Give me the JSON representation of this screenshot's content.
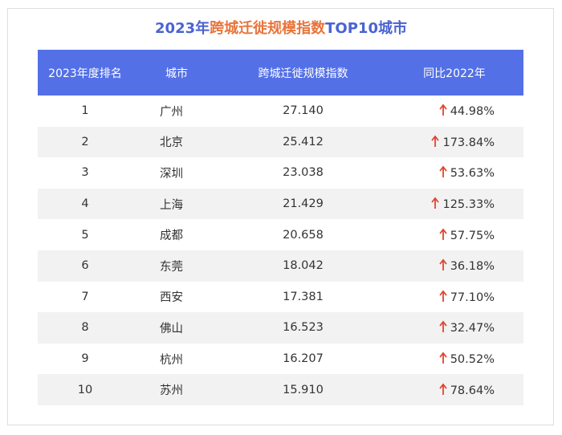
{
  "title": {
    "part1": "2023年",
    "part2": "跨城迁徙规模指数",
    "part3": "TOP10城市"
  },
  "headers": [
    "2023年度排名",
    "城市",
    "跨城迁徙规模指数",
    "同比2022年"
  ],
  "rows": [
    {
      "rank": "1",
      "city": "广州",
      "index": "27.140",
      "change": "44.98%"
    },
    {
      "rank": "2",
      "city": "北京",
      "index": "25.412",
      "change": "173.84%"
    },
    {
      "rank": "3",
      "city": "深圳",
      "index": "23.038",
      "change": "53.63%"
    },
    {
      "rank": "4",
      "city": "上海",
      "index": "21.429",
      "change": "125.33%"
    },
    {
      "rank": "5",
      "city": "成都",
      "index": "20.658",
      "change": "57.75%"
    },
    {
      "rank": "6",
      "city": "东莞",
      "index": "18.042",
      "change": "36.18%"
    },
    {
      "rank": "7",
      "city": "西安",
      "index": "17.381",
      "change": "77.10%"
    },
    {
      "rank": "8",
      "city": "佛山",
      "index": "16.523",
      "change": "32.47%"
    },
    {
      "rank": "9",
      "city": "杭州",
      "index": "16.207",
      "change": "50.52%"
    },
    {
      "rank": "10",
      "city": "苏州",
      "index": "15.910",
      "change": "78.64%"
    }
  ],
  "colors": {
    "header_bg": "#5470e6",
    "title_blue": "#4a63d2",
    "title_orange": "#e8743b",
    "arrow_red": "#e0452e",
    "alt_row": "#f2f2f2"
  },
  "icons": {
    "change": "up-arrow-icon"
  }
}
